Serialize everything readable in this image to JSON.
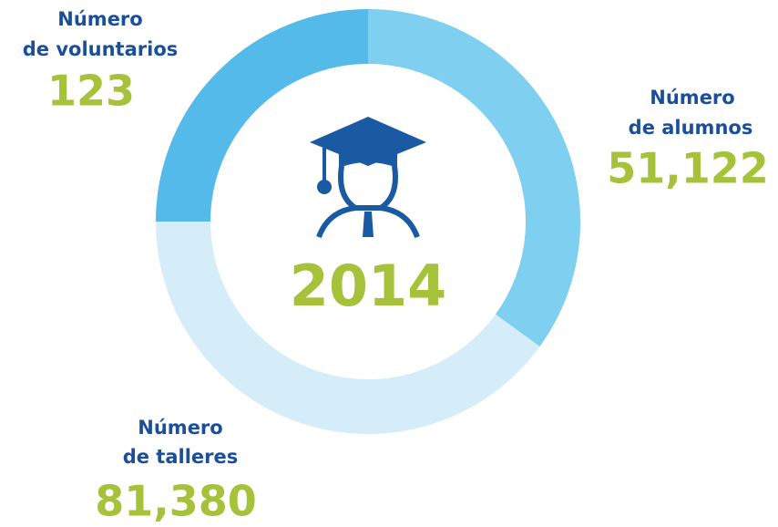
{
  "year": "2014",
  "stats": [
    {
      "label_line1": "Número",
      "label_line2": "de voluntarios",
      "value": "123"
    },
    {
      "label_line1": "Número",
      "label_line2": "de alumnos",
      "value": "51,122"
    },
    {
      "label_line1": "Número",
      "label_line2": "de talleres",
      "value": "81,380"
    }
  ]
}
